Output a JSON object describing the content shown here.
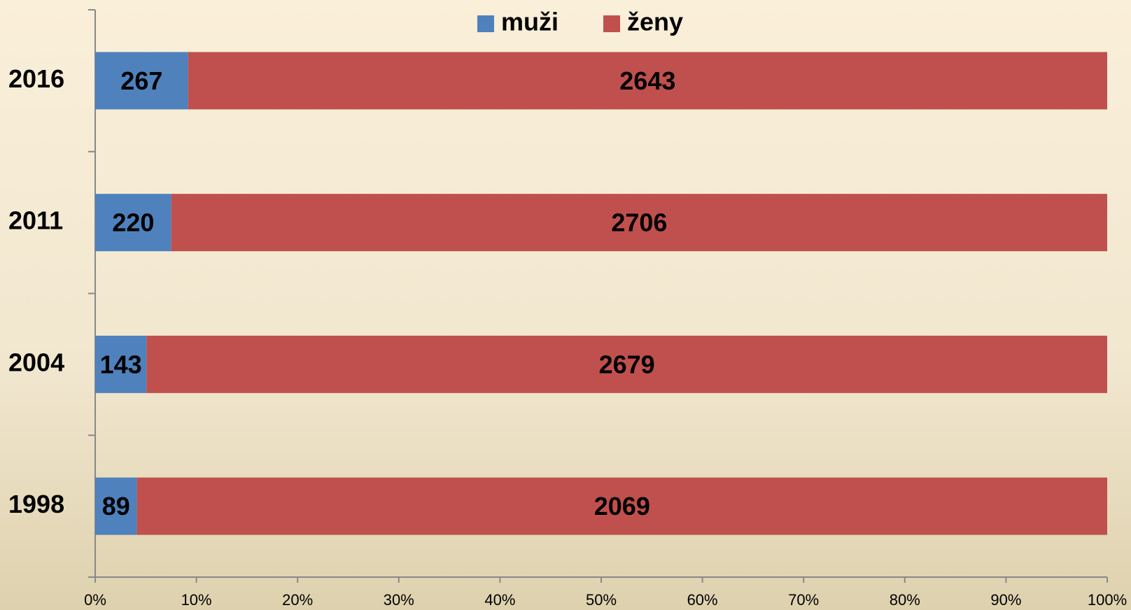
{
  "chart_data": {
    "type": "bar",
    "orientation": "horizontal",
    "stacking": "percent",
    "categories": [
      "2016",
      "2011",
      "2004",
      "1998"
    ],
    "series": [
      {
        "name": "muži",
        "color": "#4f81bd",
        "values": [
          267,
          220,
          143,
          89
        ]
      },
      {
        "name": "ženy",
        "color": "#c0504d",
        "values": [
          2643,
          2706,
          2679,
          2069
        ]
      }
    ],
    "xlim": [
      0,
      100
    ],
    "xticks": [
      {
        "value": 0,
        "label": "0%"
      },
      {
        "value": 10,
        "label": "10%"
      },
      {
        "value": 20,
        "label": "20%"
      },
      {
        "value": 30,
        "label": "30%"
      },
      {
        "value": 40,
        "label": "40%"
      },
      {
        "value": 50,
        "label": "50%"
      },
      {
        "value": 60,
        "label": "60%"
      },
      {
        "value": 70,
        "label": "70%"
      },
      {
        "value": 80,
        "label": "80%"
      },
      {
        "value": 90,
        "label": "90%"
      },
      {
        "value": 100,
        "label": "100%"
      }
    ],
    "legend": "top"
  }
}
